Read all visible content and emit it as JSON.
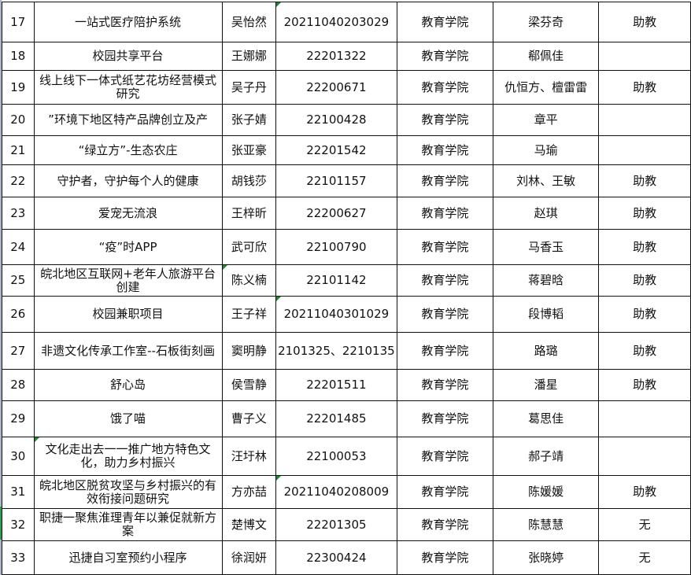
{
  "rows": [
    {
      "no": "17",
      "project": "一站式医疗陪护系统",
      "leader": "吴怡然",
      "student_id": "20211040203029",
      "college": "教育学院",
      "advisor": "梁芬奇",
      "title": "助教"
    },
    {
      "no": "18",
      "project": "校园共享平台",
      "leader": "王娜娜",
      "student_id": "22201322",
      "college": "教育学院",
      "advisor": "郗佩佳",
      "title": ""
    },
    {
      "no": "19",
      "project": "线上线下一体式纸艺花坊经营模式研究",
      "leader": "吴子丹",
      "student_id": "22200671",
      "college": "教育学院",
      "advisor": "仇恒方、檀雷雷",
      "title": "助教"
    },
    {
      "no": "20",
      "project": "”环境下地区特产品牌创立及产",
      "leader": "张子婧",
      "student_id": "22100428",
      "college": "教育学院",
      "advisor": "章平",
      "title": ""
    },
    {
      "no": "21",
      "project": "“绿立方”-生态农庄",
      "leader": "张亚豪",
      "student_id": "22201542",
      "college": "教育学院",
      "advisor": "马瑜",
      "title": ""
    },
    {
      "no": "22",
      "project": "守护者，守护每个人的健康",
      "leader": "胡钱莎",
      "student_id": "22101157",
      "college": "教育学院",
      "advisor": "刘林、王敏",
      "title": "助教"
    },
    {
      "no": "23",
      "project": "爱宠无流浪",
      "leader": "王梓昕",
      "student_id": "22200627",
      "college": "教育学院",
      "advisor": "赵琪",
      "title": "助教"
    },
    {
      "no": "24",
      "project": "“疫”时APP",
      "leader": "武可欣",
      "student_id": "22100790",
      "college": "教育学院",
      "advisor": "马香玉",
      "title": "助教"
    },
    {
      "no": "25",
      "project": "皖北地区互联网+老年人旅游平台创建",
      "leader": "陈义楠",
      "student_id": "22101142",
      "college": "教育学院",
      "advisor": "蒋碧晗",
      "title": "助教"
    },
    {
      "no": "26",
      "project": "校园兼职项目",
      "leader": "王子祥",
      "student_id": "20211040301029",
      "college": "教育学院",
      "advisor": "段博韬",
      "title": "助教"
    },
    {
      "no": "27",
      "project": "非遗文化传承工作室--石板街刻画",
      "leader": "窦明静",
      "student_id": "2101325、2210135",
      "college": "教育学院",
      "advisor": "路璐",
      "title": "助教"
    },
    {
      "no": "28",
      "project": "舒心岛",
      "leader": "侯雪静",
      "student_id": "22201511",
      "college": "教育学院",
      "advisor": "潘星",
      "title": "助教"
    },
    {
      "no": "29",
      "project": "饿了喵",
      "leader": "曹子义",
      "student_id": "22201485",
      "college": "教育学院",
      "advisor": "葛思佳",
      "title": ""
    },
    {
      "no": "30",
      "project": "文化走出去一一推广地方特色文化，助力乡村振兴",
      "leader": "汪圩林",
      "student_id": "22100053",
      "college": "教育学院",
      "advisor": "郝子靖",
      "title": ""
    },
    {
      "no": "31",
      "project": "皖北地区脱贫攻坚与乡村振兴的有效衔接问题研究",
      "leader": "方亦喆",
      "student_id": "20211040208009",
      "college": "教育学院",
      "advisor": "陈媛媛",
      "title": "助教"
    },
    {
      "no": "32",
      "project": "职捷一聚焦淮理青年以兼促就新方案",
      "leader": "楚博文",
      "student_id": "22201305",
      "college": "教育学院",
      "advisor": "陈慧慧",
      "title": "无"
    },
    {
      "no": "33",
      "project": "迅捷自习室预约小程序",
      "leader": "徐润妍",
      "student_id": "22300424",
      "college": "教育学院",
      "advisor": "张晓婷",
      "title": "无"
    }
  ],
  "colors": {
    "grid": "#111111",
    "comment_marker": "#1a8a2a",
    "row_header_edge": "#aab4c8",
    "selected_edge": "#2e9b4e"
  }
}
